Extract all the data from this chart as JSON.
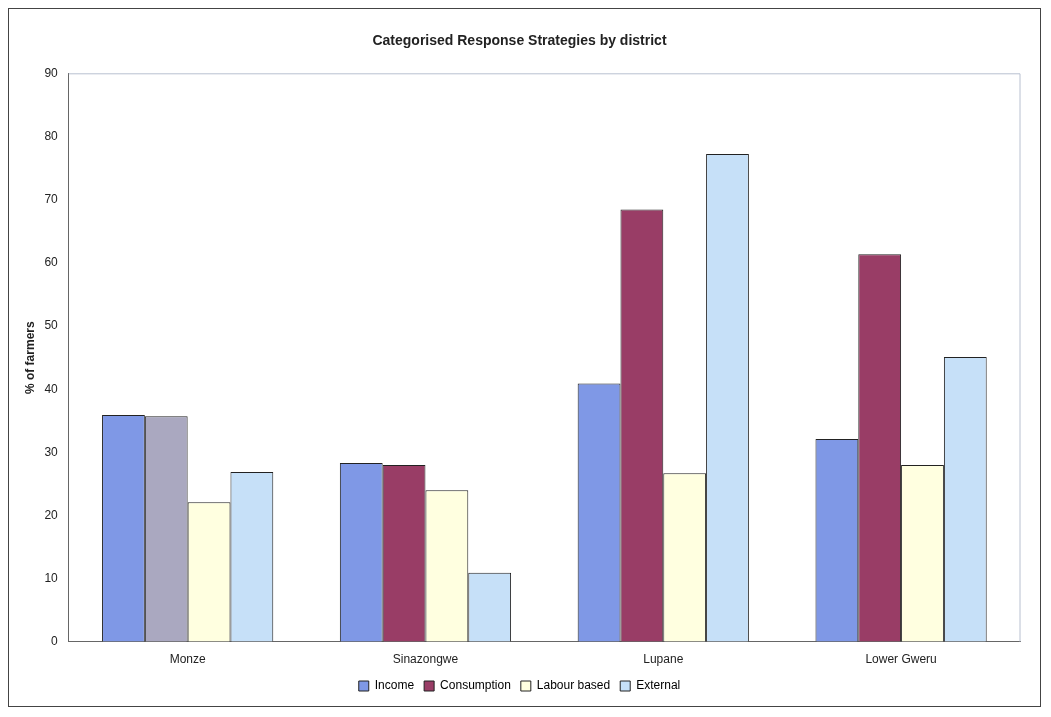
{
  "chart_data": {
    "type": "bar",
    "title": "Categorised Response Strategies by district",
    "ylabel": "% of farmers",
    "categories": [
      "Monze",
      "Sinazongwe",
      "Lupane",
      "Lower Gweru"
    ],
    "series": [
      {
        "name": "Income",
        "color": "#7f98e6",
        "values": [
          35.9,
          28.3,
          40.9,
          32.1
        ]
      },
      {
        "name": "Consumption",
        "color": "#993d66",
        "colors": [
          "#aaa8c0",
          "#993d66",
          "#993d66",
          "#993d66"
        ],
        "values": [
          35.7,
          28.0,
          68.5,
          61.4
        ]
      },
      {
        "name": "Labour based",
        "color": "#ffffe0",
        "values": [
          22.1,
          24.0,
          26.7,
          28.0
        ]
      },
      {
        "name": "External",
        "color": "#c6e0f8",
        "values": [
          26.9,
          10.9,
          77.3,
          45.1
        ]
      }
    ],
    "ylim": [
      0,
      90
    ],
    "yticks": [
      0,
      10,
      20,
      30,
      40,
      50,
      60,
      70,
      80,
      90
    ],
    "grid": false,
    "legend": "bottom"
  }
}
